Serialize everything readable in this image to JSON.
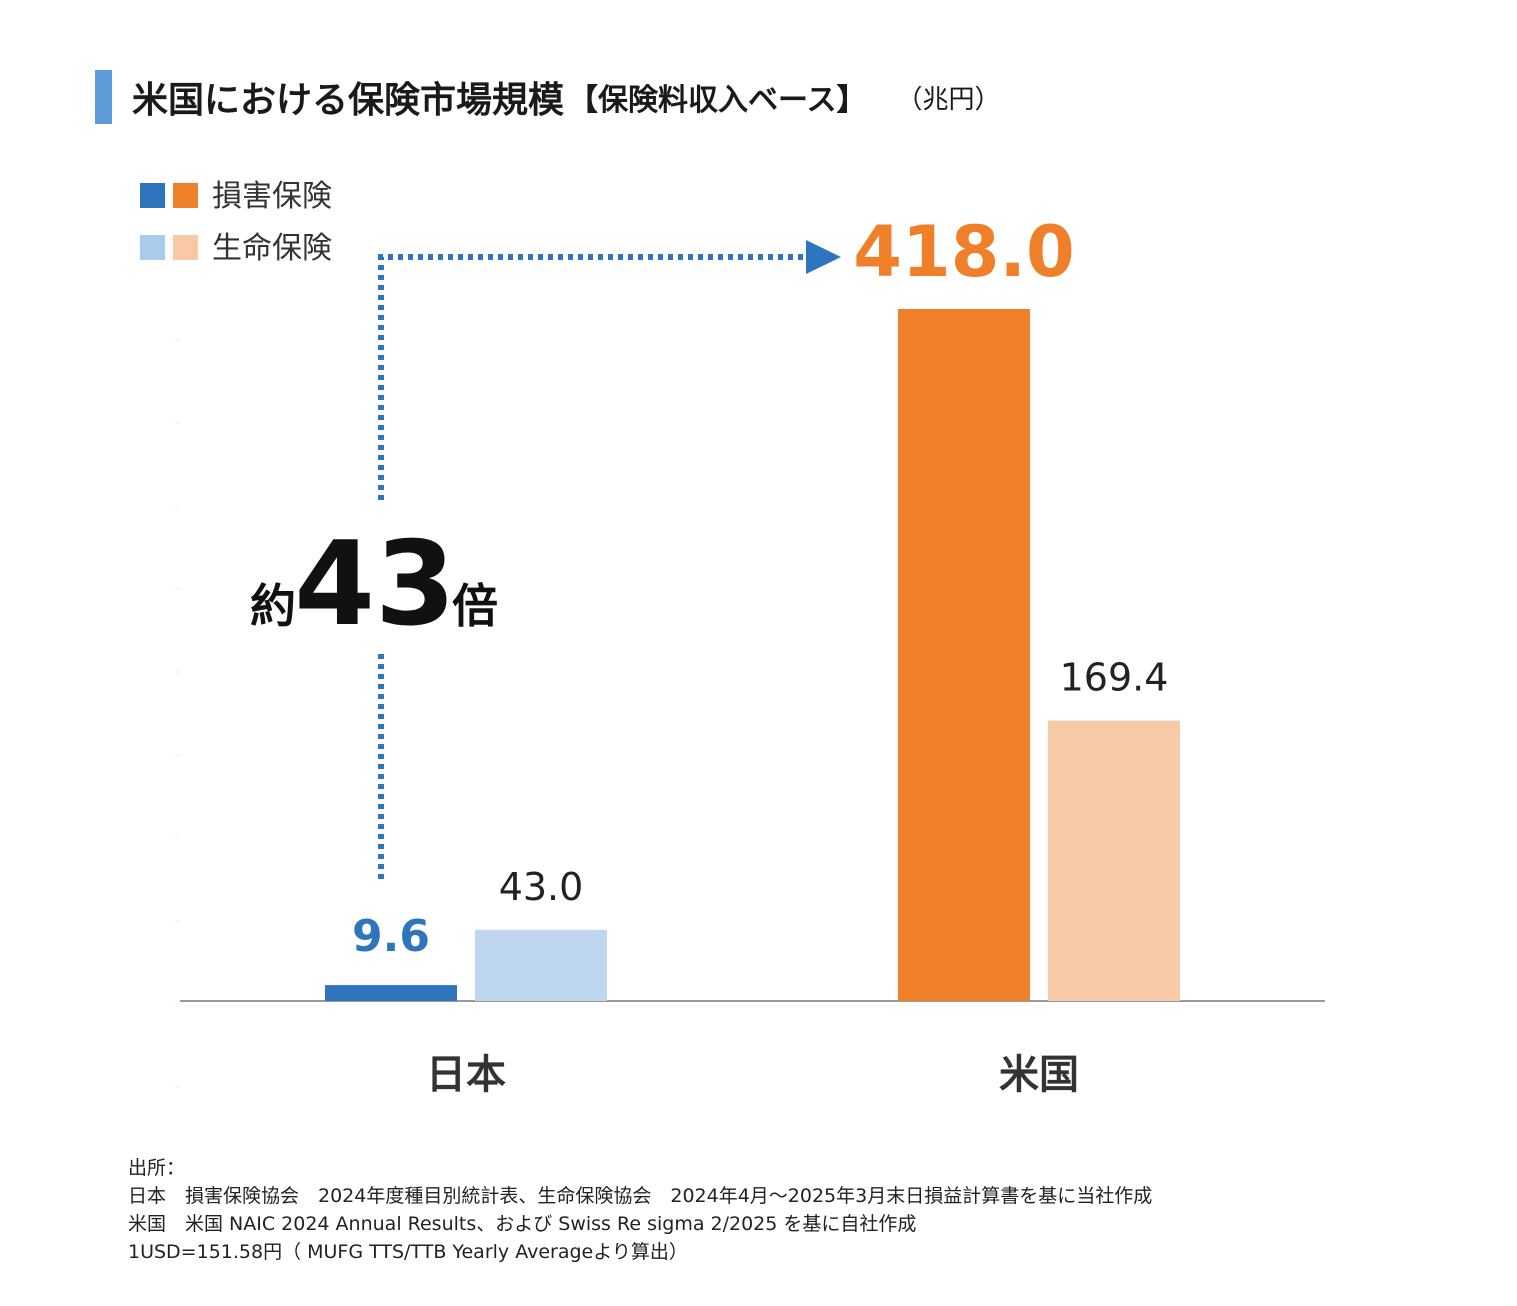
{
  "header": {
    "title": "米国における保険市場規模",
    "subtitle": "【保険料収入ベース】",
    "unit": "（兆円）"
  },
  "chart_data": {
    "type": "bar",
    "categories": [
      "日本",
      "米国"
    ],
    "series": [
      {
        "name": "損害保険",
        "values": [
          9.6,
          418.0
        ]
      },
      {
        "name": "生命保険",
        "values": [
          43.0,
          169.4
        ]
      }
    ],
    "value_labels": [
      [
        "9.6",
        "43.0"
      ],
      [
        "418.0",
        "169.4"
      ]
    ],
    "legend": [
      {
        "label": "損害保険",
        "colors": [
          "#2e75bd",
          "#f07f2a"
        ]
      },
      {
        "label": "生命保険",
        "colors": [
          "#a9cbec",
          "#f9c9a5"
        ]
      }
    ],
    "colors": {
      "japan_nonlife": "#2e75bd",
      "japan_life": "#bed6ee",
      "us_nonlife": "#f07f2a",
      "us_life": "#f8cba8",
      "arrow": "#2e75bd",
      "axis": "#9a9a9a"
    },
    "ylim": [
      0,
      450
    ],
    "annotation": {
      "prefix": "約",
      "number": "43",
      "suffix": "倍"
    },
    "title": "米国における保険市場規模【保険料収入ベース】（兆円）",
    "xlabel": "",
    "ylabel": "兆円"
  },
  "sources": {
    "heading": "出所：",
    "lines": [
      "日本　損害保険協会　2024年度種目別統計表、生命保険協会　2024年4月～2025年3月末日損益計算書を基に当社作成",
      "米国　米国 NAIC 2024 Annual Results、および Swiss Re sigma 2/2025 を基に自社作成",
      "1USD=151.58円（ MUFG TTS/TTB Yearly Averageより算出）"
    ]
  }
}
